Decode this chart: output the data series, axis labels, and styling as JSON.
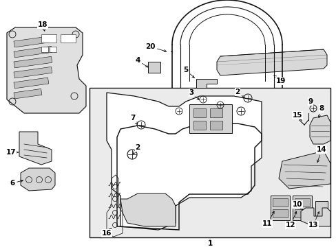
{
  "bg_color": "#ffffff",
  "panel_bg": "#e8e8e8",
  "line_color": "#111111",
  "fig_width": 4.89,
  "fig_height": 3.6,
  "dpi": 100
}
